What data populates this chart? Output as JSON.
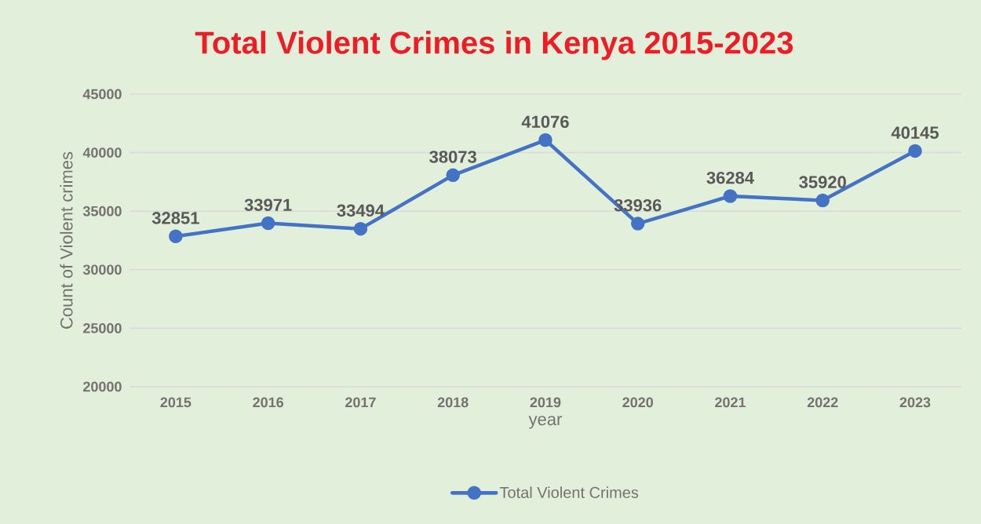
{
  "chart_data": {
    "type": "line",
    "title": "Total Violent Crimes in Kenya 2015-2023",
    "xlabel": "year",
    "ylabel": "Count of Violent crimes",
    "categories": [
      "2015",
      "2016",
      "2017",
      "2018",
      "2019",
      "2020",
      "2021",
      "2022",
      "2023"
    ],
    "series": [
      {
        "name": "Total Violent Crimes",
        "color": "#4472c4",
        "values": [
          32851,
          33971,
          33494,
          38073,
          41076,
          33936,
          36284,
          35920,
          40145
        ]
      }
    ],
    "ylim": [
      20000,
      45000
    ],
    "yticks": [
      20000,
      25000,
      30000,
      35000,
      40000,
      45000
    ],
    "grid": "y",
    "legend": "bottom",
    "marker": "circle",
    "line_style": "solid",
    "data_labels": true
  }
}
